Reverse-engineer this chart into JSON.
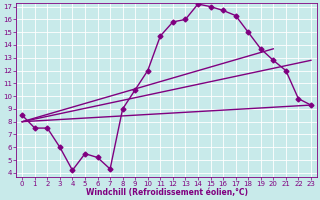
{
  "bg_color": "#c8eaea",
  "line_color": "#800080",
  "xlim": [
    -0.5,
    23.5
  ],
  "ylim": [
    3.7,
    17.3
  ],
  "xticks": [
    0,
    1,
    2,
    3,
    4,
    5,
    6,
    7,
    8,
    9,
    10,
    11,
    12,
    13,
    14,
    15,
    16,
    17,
    18,
    19,
    20,
    21,
    22,
    23
  ],
  "yticks": [
    4,
    5,
    6,
    7,
    8,
    9,
    10,
    11,
    12,
    13,
    14,
    15,
    16,
    17
  ],
  "xlabel": "Windchill (Refroidissement éolien,°C)",
  "line1_x": [
    0,
    1,
    2,
    3,
    4,
    5,
    6,
    7,
    8,
    9,
    10,
    11,
    12,
    13,
    14,
    15,
    16,
    17,
    18,
    19,
    20,
    21,
    22,
    23
  ],
  "line1_y": [
    8.5,
    7.5,
    7.5,
    6.0,
    4.2,
    5.5,
    5.2,
    4.3,
    9.0,
    10.5,
    12.0,
    14.7,
    15.8,
    16.0,
    17.2,
    17.0,
    16.7,
    16.3,
    15.0,
    13.7,
    12.8,
    12.0,
    9.8,
    9.3
  ],
  "line2_x": [
    0,
    23
  ],
  "line2_y": [
    8.0,
    9.3
  ],
  "line3_x": [
    0,
    23
  ],
  "line3_y": [
    8.0,
    12.8
  ],
  "line4_x": [
    0,
    20
  ],
  "line4_y": [
    8.0,
    13.7
  ],
  "marker": "D",
  "marker_size": 2.5,
  "linewidth": 1.0,
  "tick_fontsize": 5.0,
  "xlabel_fontsize": 5.5
}
